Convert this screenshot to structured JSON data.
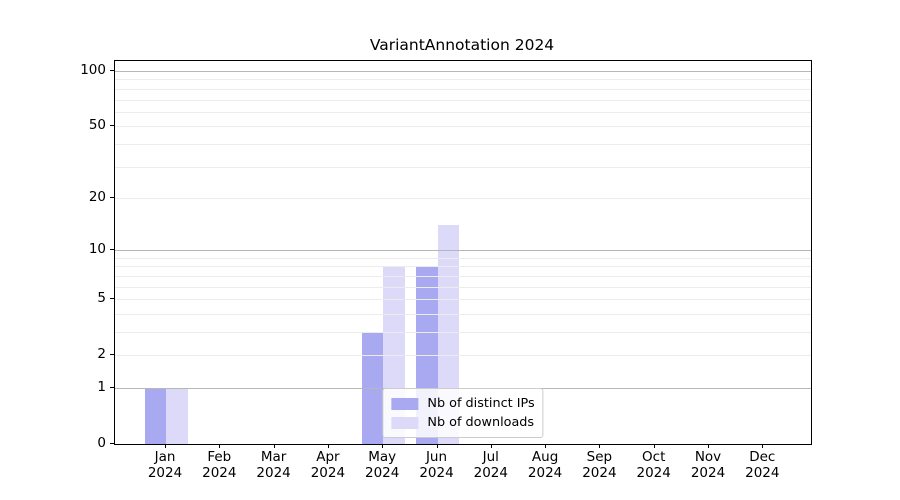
{
  "chart_data": {
    "type": "bar",
    "title": "VariantAnnotation 2024",
    "yscale": "log1p",
    "year": "2024",
    "categories": [
      "Jan",
      "Feb",
      "Mar",
      "Apr",
      "May",
      "Jun",
      "Jul",
      "Aug",
      "Sep",
      "Oct",
      "Nov",
      "Dec"
    ],
    "series": [
      {
        "name": "Nb of distinct IPs",
        "color": "#a9a9f2",
        "values": [
          1,
          0,
          0,
          0,
          3,
          8,
          0,
          0,
          0,
          0,
          0,
          0
        ]
      },
      {
        "name": "Nb of downloads",
        "color": "#dcdaf8",
        "values": [
          1,
          0,
          0,
          0,
          8,
          14,
          0,
          0,
          0,
          0,
          0,
          0
        ]
      }
    ],
    "y_ticks": [
      0,
      1,
      2,
      5,
      10,
      20,
      50,
      100
    ],
    "y_major_gridlines": [
      1,
      10,
      100
    ],
    "y_minor_gridlines": [
      2,
      3,
      4,
      5,
      6,
      7,
      8,
      9,
      20,
      30,
      40,
      50,
      60,
      70,
      80,
      90
    ],
    "ylim": [
      0,
      100
    ],
    "grid": true,
    "legend": {
      "position": "lower center"
    }
  },
  "colors": {
    "major_grid": "#b7b7b7",
    "minor_grid": "#ececec",
    "spine": "#000000",
    "text": "#000000",
    "legend_border": "#cccccc"
  }
}
